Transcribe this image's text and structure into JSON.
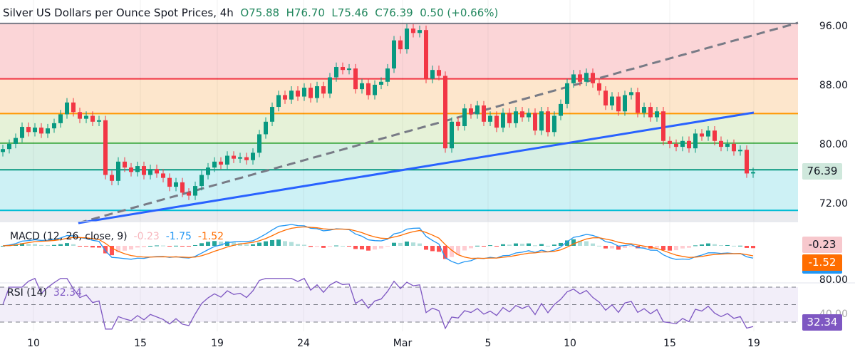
{
  "header": {
    "title": "Silver US Dollars per Ounce Spot Prices, 4h",
    "open": "O75.88",
    "high": "H76.70",
    "low": "L75.46",
    "close": "C76.39",
    "change": "0.50 (+0.66%)"
  },
  "macd": {
    "label": "MACD (12, 26, close, 9)",
    "hist": "-0.23",
    "macd": "-1.75",
    "signal": "-1.52"
  },
  "rsi": {
    "label": "RSI (14)",
    "value": "32.34"
  },
  "price_axis": [
    "96.00",
    "88.00",
    "80.00",
    "72.00"
  ],
  "rsi_axis": [
    "80.00",
    "40.00"
  ],
  "last_price": "76.39",
  "colors": {
    "up": "#089981",
    "down": "#f23645",
    "macd": "#2196f3",
    "signal": "#ff6d00",
    "rsi": "#7e57c2"
  },
  "chart_data": {
    "type": "candlestick",
    "title": "Silver US Dollars per Ounce Spot Prices, 4h",
    "x_ticks": [
      "10",
      "15",
      "19",
      "24",
      "Mar",
      "5",
      "10",
      "15",
      "19"
    ],
    "ylim": [
      71,
      97
    ],
    "fib_levels": [
      96.5,
      89.0,
      84.3,
      80.3,
      76.7,
      71.2
    ],
    "closes": [
      79.5,
      80.2,
      81.0,
      82.5,
      81.8,
      82.4,
      81.6,
      82.3,
      83.0,
      84.2,
      85.8,
      84.5,
      83.6,
      84.0,
      83.2,
      83.4,
      76.0,
      75.2,
      77.8,
      77.0,
      76.4,
      77.2,
      76.0,
      76.8,
      76.2,
      75.6,
      74.4,
      75.0,
      73.6,
      73.2,
      74.5,
      76.0,
      77.0,
      77.8,
      77.4,
      78.6,
      78.2,
      78.4,
      78.0,
      79.0,
      81.5,
      83.2,
      85.2,
      86.8,
      86.2,
      87.4,
      86.6,
      87.8,
      86.4,
      88.0,
      87.0,
      89.2,
      90.6,
      90.2,
      90.4,
      87.6,
      88.4,
      86.8,
      88.2,
      88.6,
      90.4,
      94.2,
      93.0,
      95.8,
      95.2,
      95.6,
      89.0,
      90.2,
      89.4,
      79.6,
      83.2,
      82.6,
      85.0,
      84.2,
      85.4,
      83.2,
      84.0,
      82.4,
      84.4,
      83.0,
      84.6,
      83.8,
      84.4,
      82.0,
      84.6,
      81.8,
      84.0,
      85.6,
      88.4,
      89.6,
      88.6,
      89.8,
      88.4,
      87.4,
      85.4,
      86.6,
      84.6,
      86.8,
      87.2,
      84.4,
      85.2,
      83.8,
      84.6,
      80.6,
      80.2,
      79.8,
      80.6,
      79.6,
      81.6,
      81.2,
      82.0,
      80.6,
      79.8,
      80.2,
      79.2,
      79.4,
      76.2,
      76.39
    ]
  }
}
